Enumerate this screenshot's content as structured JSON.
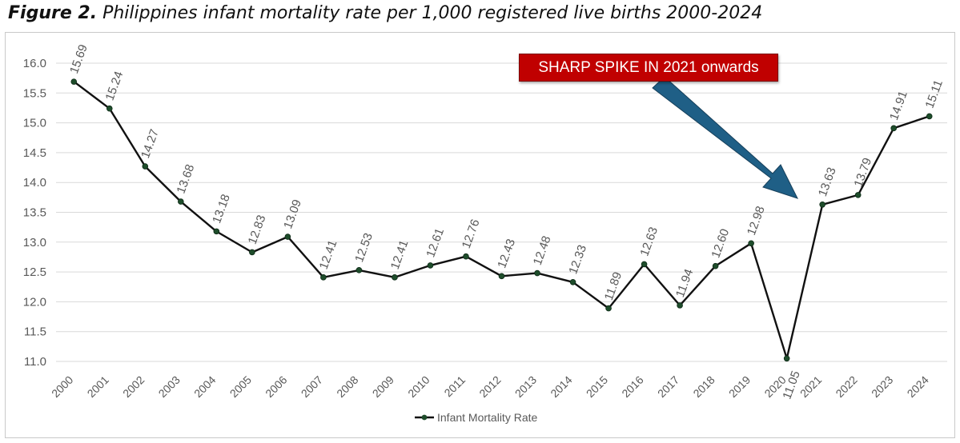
{
  "figure": {
    "label": "Figure 2.",
    "title": "Philippines infant mortality rate per 1,000 registered live births 2000-2024"
  },
  "annotation": {
    "text": "SHARP SPIKE IN 2021 onwards",
    "box_color": "#c00000",
    "arrow_color": "#1f5f86"
  },
  "chart_data": {
    "type": "line",
    "categories": [
      "2000",
      "2001",
      "2002",
      "2003",
      "2004",
      "2005",
      "2006",
      "2007",
      "2008",
      "2009",
      "2010",
      "2011",
      "2012",
      "2013",
      "2014",
      "2015",
      "2016",
      "2017",
      "2018",
      "2019",
      "2020",
      "2021",
      "2022",
      "2023",
      "2024"
    ],
    "series": [
      {
        "name": "Infant Mortality Rate",
        "values": [
          15.69,
          15.24,
          14.27,
          13.68,
          13.18,
          12.83,
          13.09,
          12.41,
          12.53,
          12.41,
          12.61,
          12.76,
          12.43,
          12.48,
          12.33,
          11.89,
          12.63,
          11.94,
          12.6,
          12.98,
          11.05,
          13.63,
          13.79,
          14.91,
          15.11
        ],
        "data_labels": [
          "15.69",
          "15.24",
          "14.27",
          "13.68",
          "13.18",
          "12.83",
          "13.09",
          "12.41",
          "12.53",
          "12.41",
          "12.61",
          "12.76",
          "12.43",
          "12.48",
          "12.33",
          "11.89",
          "12.63",
          "11.94",
          "12.60",
          "12.98",
          "11.05",
          "13.63",
          "13.79",
          "14.91",
          "15.11"
        ],
        "color": "#111111",
        "marker_color": "#1e4d2b"
      }
    ],
    "y_ticks": [
      "11.0",
      "11.5",
      "12.0",
      "12.5",
      "13.0",
      "13.5",
      "14.0",
      "14.5",
      "15.0",
      "15.5",
      "16.0"
    ],
    "ylim": [
      11.0,
      16.0
    ],
    "grid": true,
    "legend": "bottom-center"
  }
}
